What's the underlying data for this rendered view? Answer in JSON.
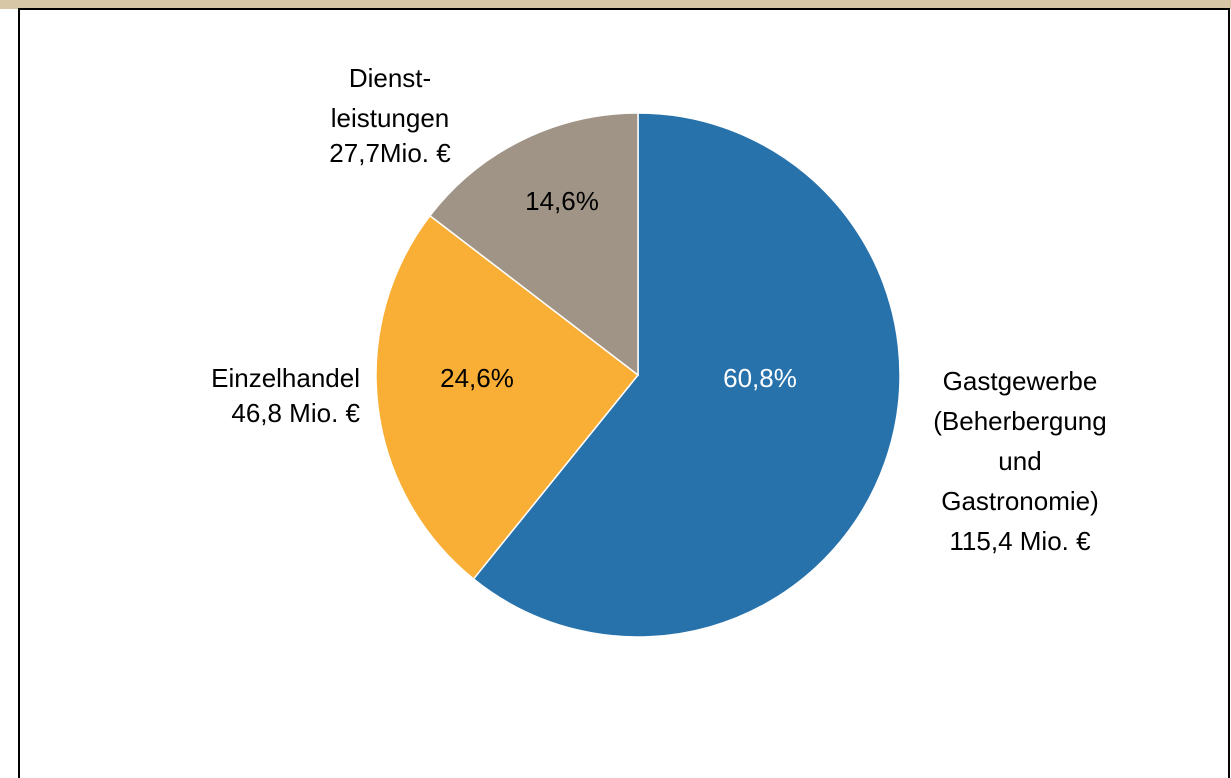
{
  "chart_data": {
    "type": "pie",
    "categories": [
      [
        "Gastgewerbe",
        "(Beherbergung",
        "und",
        "Gastronomie)"
      ],
      [
        "Einzelhandel"
      ],
      [
        "Dienst-",
        "leistungen"
      ]
    ],
    "values": [
      60.8,
      24.6,
      14.6
    ],
    "value_labels": [
      "60,8%",
      "24,6%",
      "14,6%"
    ],
    "amounts": [
      115.4,
      46.8,
      27.7
    ],
    "amount_labels": [
      "115,4 Mio. €",
      "46,8 Mio. €",
      "27,7Mio. €"
    ],
    "colors": [
      "#2872ac",
      "#f9ae35",
      "#a09487"
    ],
    "value_label_colors": [
      "#ffffff",
      "#000000",
      "#000000"
    ]
  }
}
